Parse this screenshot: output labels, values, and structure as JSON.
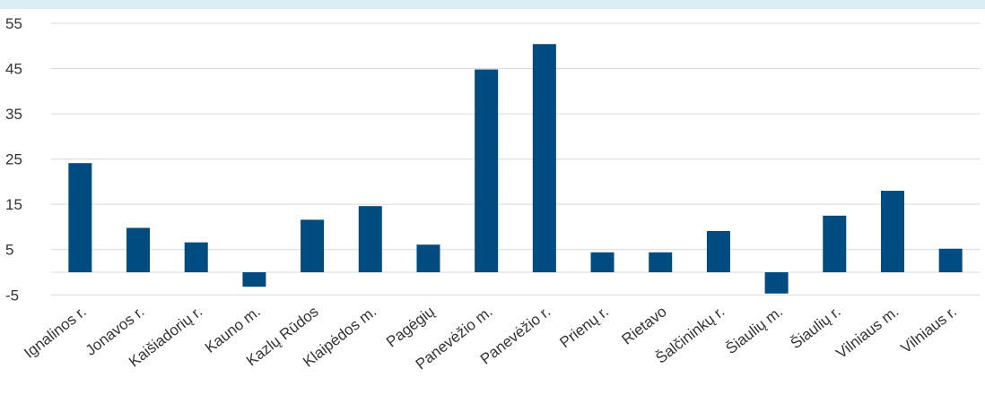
{
  "chart_data": {
    "type": "bar",
    "categories": [
      "Ignalinos r.",
      "Jonavos r.",
      "Kaišiadorių r.",
      "Kauno m.",
      "Kazlų Rūdos",
      "Klaipėdos m.",
      "Pagėgių",
      "Panevėžio m.",
      "Panevėžio r.",
      "Prienų r.",
      "Rietavo",
      "Šalčininkų r.",
      "Šiaulių m.",
      "Šiaulių r.",
      "Vilniaus m.",
      "Vilniaus r."
    ],
    "values": [
      24.1,
      9.8,
      6.6,
      -3.2,
      11.6,
      14.6,
      6.1,
      44.8,
      50.4,
      4.4,
      4.4,
      9.1,
      -4.7,
      12.5,
      18.0,
      5.2
    ],
    "yticks": [
      55,
      45,
      35,
      25,
      15,
      5,
      -5
    ],
    "ylim": [
      -5,
      55
    ],
    "grid": true,
    "bar_color": "#004b7f",
    "grid_color": "#d9d9d9",
    "band_color": "#daeef6"
  }
}
